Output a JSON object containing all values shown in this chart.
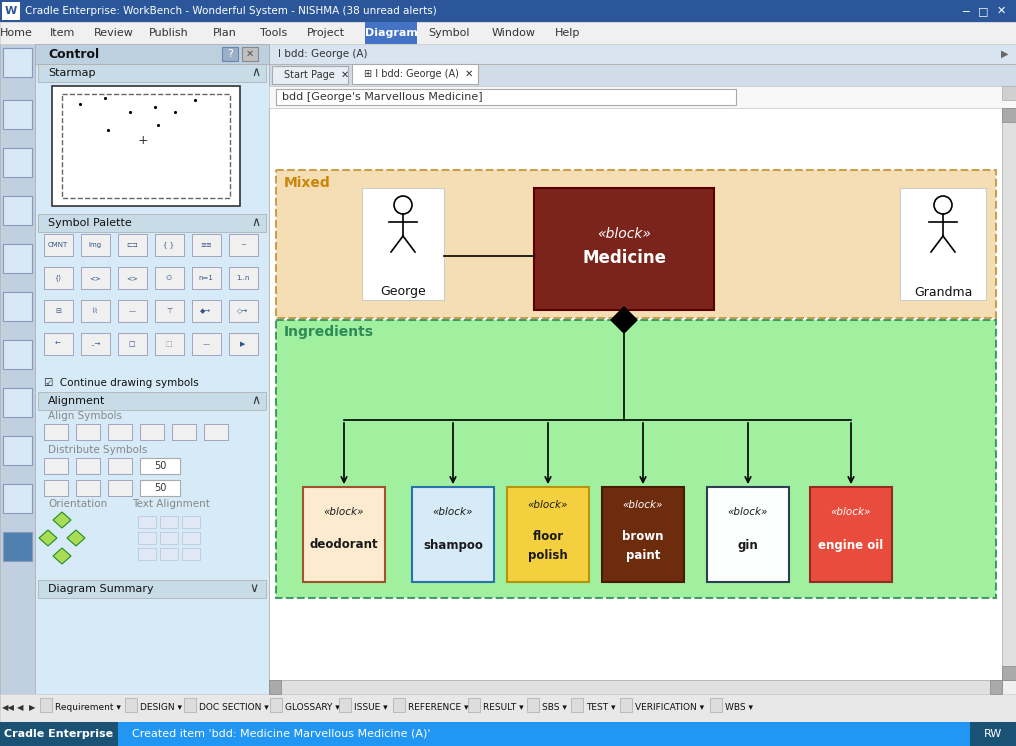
{
  "window_title": "Cradle Enterprise: WorkBench - Wonderful System - NISHMA (38 unread alerts)",
  "tab_label": "bdd [George's Marvellous Medicine]",
  "breadcrumb": "I bdd: George (A)",
  "mixed_label": "Mixed",
  "ingredients_label": "Ingredients",
  "george_label": "George",
  "grandma_label": "Grandma",
  "medicine_line1": "«block»",
  "medicine_line2": "Medicine",
  "medicine_bg": "#7B241C",
  "medicine_fg": "#FFFFFF",
  "mixed_bg": "#F5DEB3",
  "mixed_border": "#C8A050",
  "mixed_label_color": "#C8860A",
  "ingredients_bg": "#90EE90",
  "ingredients_border": "#2E8B57",
  "ingredients_label_color": "#2E8B57",
  "canvas_bg": "#FFFFFF",
  "left_panel_bg": "#D6EBF7",
  "left_sidebar_bg": "#C8D8E8",
  "titlebar_bg": "#2B579A",
  "menubar_bg": "#F0F0F0",
  "statusbar_bg": "#2196F3",
  "control_hdr_bg": "#BDD0E0",
  "section_hdr_bg": "#C8DCE8",
  "components": [
    {
      "line1": "«block»",
      "line2": "deodorant",
      "line3": null,
      "bg": "#FDEBD0",
      "border": "#A0522D",
      "text_color": "#1A1A1A"
    },
    {
      "line1": "«block»",
      "line2": "shampoo",
      "line3": null,
      "bg": "#D6EAF8",
      "border": "#2874A6",
      "text_color": "#1A1A1A"
    },
    {
      "line1": "«block»",
      "line2": "floor",
      "line3": "polish",
      "bg": "#F4D03F",
      "border": "#B7950B",
      "text_color": "#1A1A1A"
    },
    {
      "line1": "«block»",
      "line2": "brown",
      "line3": "paint",
      "bg": "#6E2C0E",
      "border": "#4A1A00",
      "text_color": "#FFFFFF"
    },
    {
      "line1": "«block»",
      "line2": "gin",
      "line3": null,
      "bg": "#FDFEFE",
      "border": "#2C3E50",
      "text_color": "#1A1A1A"
    },
    {
      "line1": "«block»",
      "line2": "engine oil",
      "line3": null,
      "bg": "#E74C3C",
      "border": "#922B21",
      "text_color": "#FFFFFF"
    }
  ],
  "menu_items": [
    "Home",
    "Item",
    "Review",
    "Publish",
    "Plan",
    "Tools",
    "Project",
    "Diagram",
    "Symbol",
    "Window",
    "Help"
  ],
  "menu_active": "Diagram",
  "status_text": "Created item 'bdd: Medicine Marvellous Medicine (A)'",
  "rw_label": "RW",
  "toolbar_labels": [
    "Requirement",
    "DESIGN",
    "DOC SECTION",
    "GLOSSARY",
    "ISSUE",
    "REFERENCE",
    "RESULT",
    "SBS",
    "TEST",
    "VERIFICATION",
    "WBS"
  ]
}
